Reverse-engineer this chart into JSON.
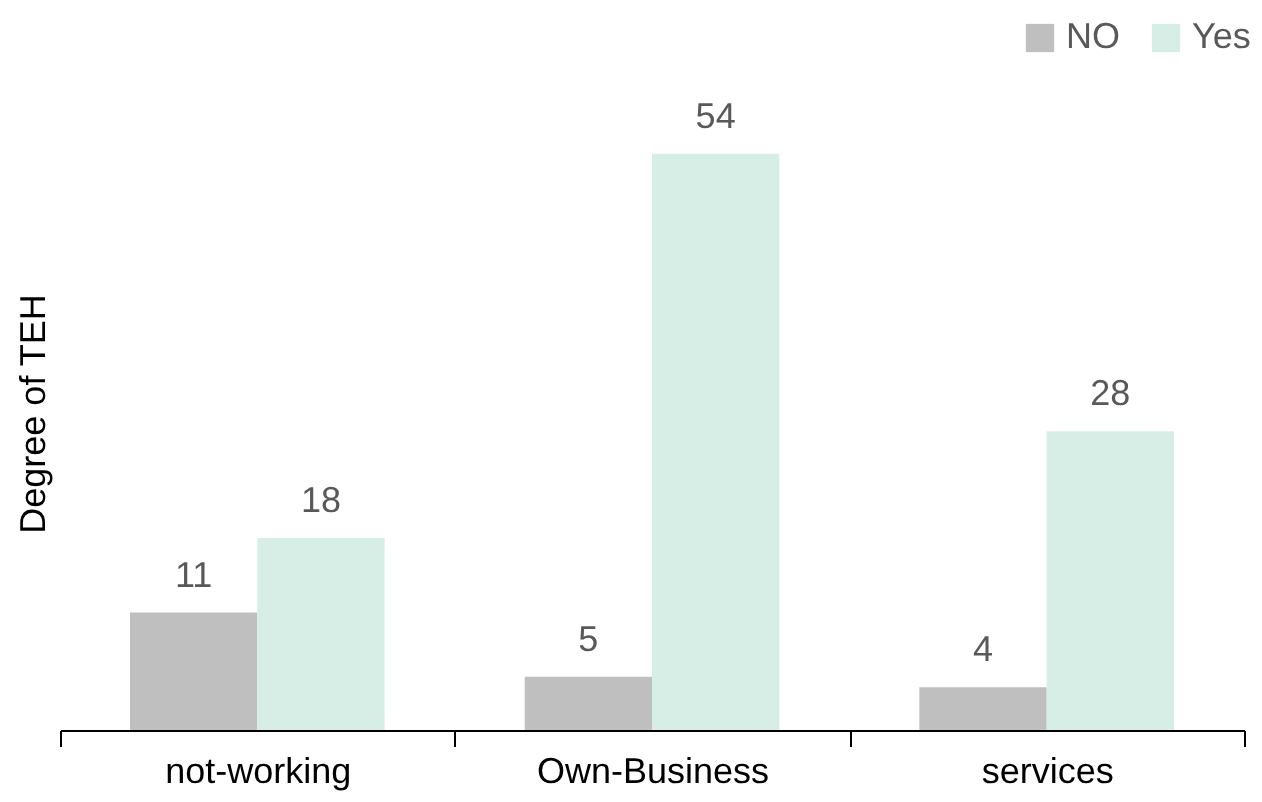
{
  "chart_data": {
    "type": "bar",
    "ylabel": "Degree of TEH",
    "categories": [
      "not-working",
      "Own-Business",
      "services"
    ],
    "series": [
      {
        "name": "NO",
        "color": "#bfbfbf",
        "values": [
          11,
          5,
          4
        ]
      },
      {
        "name": "Yes",
        "color": "#d6eee6",
        "values": [
          18,
          54,
          28
        ]
      }
    ],
    "data_labels": true,
    "legend": "top right",
    "grid": false
  }
}
